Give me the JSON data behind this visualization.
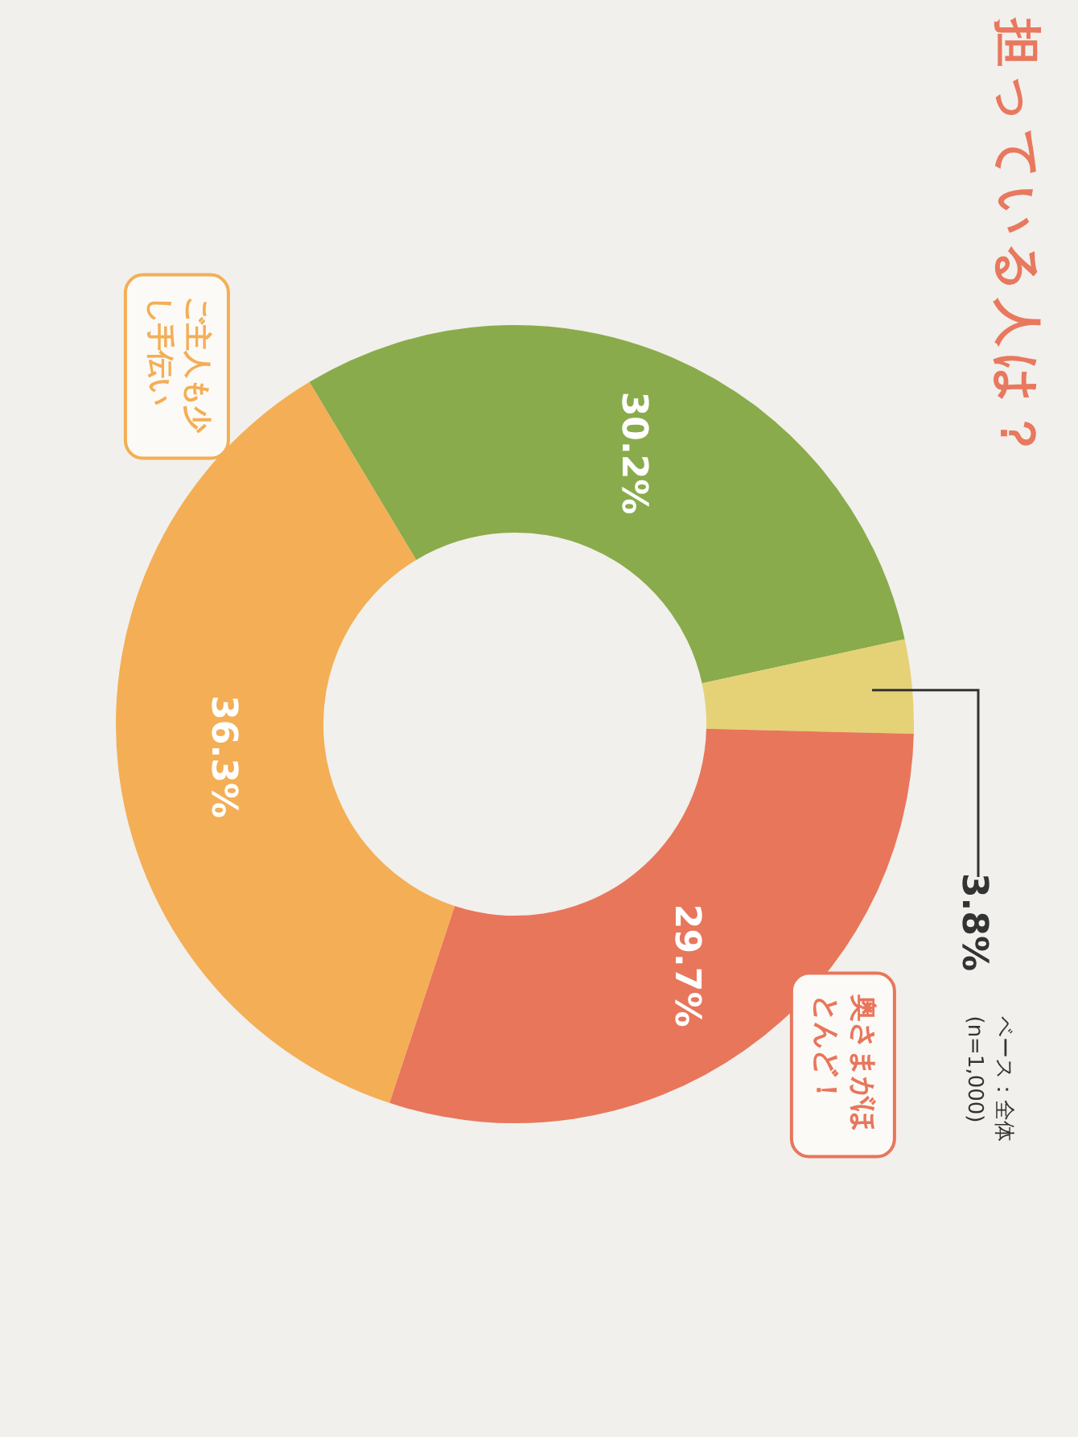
{
  "chart_data": {
    "type": "donut",
    "title": "担っている人は？",
    "categories": [
      null,
      null,
      "奥さまがほとんど！",
      "ご主人も少し手伝い"
    ],
    "values": [
      30.2,
      3.8,
      29.7,
      36.3
    ],
    "colors": [
      "#8aab4b",
      "#e5d276",
      "#e8765b",
      "#f4ae55"
    ],
    "value_labels": [
      "30.2%",
      "3.8%",
      "29.7%",
      "36.3%"
    ],
    "legend": false,
    "annotations": [
      "ベース：全体(n=1,000)"
    ]
  }
}
